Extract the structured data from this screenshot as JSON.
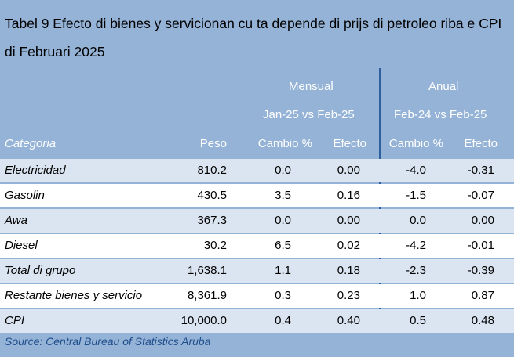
{
  "table": {
    "title": "Tabel 9 Efecto di bienes y servicionan cu ta depende di prijs di petroleo riba e CPI di Februari 2025",
    "group_headers": {
      "mensual": "Mensual",
      "anual": "Anual"
    },
    "period_headers": {
      "mensual": "Jan-25 vs Feb-25",
      "anual": "Feb-24 vs Feb-25"
    },
    "columns": [
      "Categoria",
      "Peso",
      "Cambio %",
      "Efecto",
      "Cambio %",
      "Efecto"
    ],
    "rows": [
      [
        "Electricidad",
        "810.2",
        "0.0",
        "0.00",
        "-4.0",
        "-0.31"
      ],
      [
        "Gasolin",
        "430.5",
        "3.5",
        "0.16",
        "-1.5",
        "-0.07"
      ],
      [
        "Awa",
        "367.3",
        "0.0",
        "0.00",
        "0.0",
        "0.00"
      ],
      [
        "Diesel",
        "30.2",
        "6.5",
        "0.02",
        "-4.2",
        "-0.01"
      ],
      [
        "Total di grupo",
        "1,638.1",
        "1.1",
        "0.18",
        "-2.3",
        "-0.39"
      ],
      [
        "Restante bienes y servicio",
        "8,361.9",
        "0.3",
        "0.23",
        "1.0",
        "0.87"
      ],
      [
        "CPI",
        "10,000.0",
        "0.4",
        "0.40",
        "0.5",
        "0.48"
      ]
    ],
    "source": "Source: Central Bureau of Statistics Aruba"
  },
  "colors": {
    "panel_background": "#95b3d7",
    "row_shaded": "#dbe5f1",
    "row_white": "#ffffff",
    "divider": "#2f5f9e",
    "source_text": "#1f4e8c"
  }
}
